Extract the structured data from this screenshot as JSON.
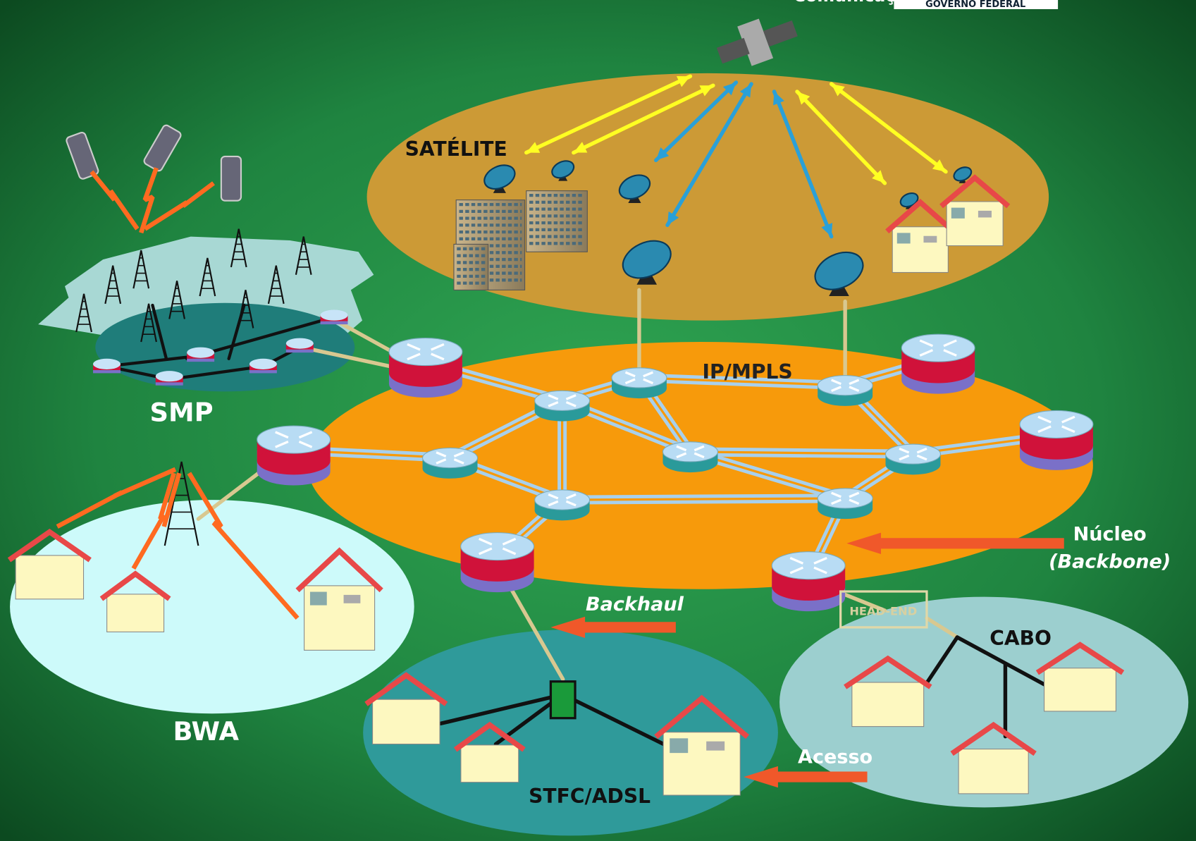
{
  "header": {
    "ministry": "Comunicações",
    "government": "GOVERNO FEDERAL"
  },
  "regions": {
    "satellite": "SATÉLITE",
    "core": "IP/MPLS",
    "mobile": "SMP",
    "wireless": "BWA",
    "dsl": "STFC/ADSL",
    "cable": "CABO",
    "head_end": "HEAD-END"
  },
  "annotations": {
    "core_title": "Núcleo",
    "core_subtitle": "(Backbone)",
    "backhaul": "Backhaul",
    "access": "Acesso"
  }
}
